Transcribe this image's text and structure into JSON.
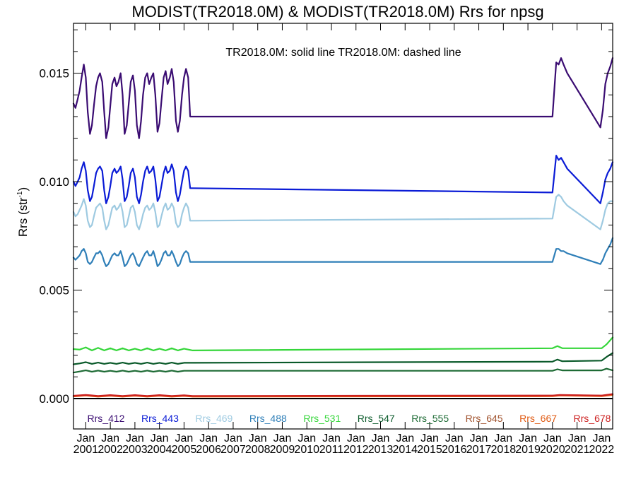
{
  "chart_data": {
    "type": "line",
    "title": "MODIST(TR2018.0M) & MODIST(TR2018.0M)  Rrs for npsg",
    "subtitle": "TR2018.0M: solid line   TR2018.0M: dashed line",
    "ylabel": "Rrs (str",
    "ylabel_sup": "-1",
    "ylabel_close": ")",
    "ylim": [
      -0.0014,
      0.0173
    ],
    "xlim": [
      2000.5,
      2022.45
    ],
    "yticks": [
      {
        "value": 0.0,
        "label": "0.000"
      },
      {
        "value": 0.005,
        "label": "0.005"
      },
      {
        "value": 0.01,
        "label": "0.010"
      },
      {
        "value": 0.015,
        "label": "0.015"
      }
    ],
    "xticks": [
      {
        "value": 2001,
        "label1": "Jan",
        "label2": "2001"
      },
      {
        "value": 2002,
        "label1": "Jan",
        "label2": "2002"
      },
      {
        "value": 2003,
        "label1": "Jan",
        "label2": "2003"
      },
      {
        "value": 2004,
        "label1": "Jan",
        "label2": "2004"
      },
      {
        "value": 2005,
        "label1": "Jan",
        "label2": "2005"
      },
      {
        "value": 2006,
        "label1": "Jan",
        "label2": "2006"
      },
      {
        "value": 2007,
        "label1": "Jan",
        "label2": "2007"
      },
      {
        "value": 2008,
        "label1": "Jan",
        "label2": "2008"
      },
      {
        "value": 2009,
        "label1": "Jan",
        "label2": "2009"
      },
      {
        "value": 2010,
        "label1": "Jan",
        "label2": "2010"
      },
      {
        "value": 2011,
        "label1": "Jan",
        "label2": "2011"
      },
      {
        "value": 2012,
        "label1": "Jan",
        "label2": "2012"
      },
      {
        "value": 2013,
        "label1": "Jan",
        "label2": "2013"
      },
      {
        "value": 2014,
        "label1": "Jan",
        "label2": "2014"
      },
      {
        "value": 2015,
        "label1": "Jan",
        "label2": "2015"
      },
      {
        "value": 2016,
        "label1": "Jan",
        "label2": "2016"
      },
      {
        "value": 2017,
        "label1": "Jan",
        "label2": "2017"
      },
      {
        "value": 2018,
        "label1": "Jan",
        "label2": "2018"
      },
      {
        "value": 2019,
        "label1": "Jan",
        "label2": "2019"
      },
      {
        "value": 2020,
        "label1": "Jan",
        "label2": "2020"
      },
      {
        "value": 2021,
        "label1": "Jan",
        "label2": "2021"
      },
      {
        "value": 2022,
        "label1": "Jan",
        "label2": "2022"
      }
    ],
    "grid": false,
    "legend_position": "bottom",
    "series": [
      {
        "name": "Rrs_412",
        "color": "#3a0c72",
        "x": [
          2000.5,
          2000.58,
          2000.67,
          2000.75,
          2000.83,
          2000.92,
          2001.0,
          2001.08,
          2001.17,
          2001.25,
          2001.33,
          2001.42,
          2001.5,
          2001.58,
          2001.67,
          2001.75,
          2001.83,
          2001.92,
          2002.0,
          2002.08,
          2002.17,
          2002.25,
          2002.33,
          2002.42,
          2002.5,
          2002.58,
          2002.67,
          2002.75,
          2002.83,
          2002.92,
          2003.0,
          2003.08,
          2003.17,
          2003.25,
          2003.33,
          2003.42,
          2003.5,
          2003.58,
          2003.67,
          2003.75,
          2003.83,
          2003.92,
          2004.0,
          2004.08,
          2004.17,
          2004.25,
          2004.33,
          2004.42,
          2004.5,
          2004.58,
          2004.67,
          2004.75,
          2004.83,
          2004.92,
          2005.0,
          2005.08,
          2005.17,
          2005.25,
          2005.35,
          2020.0,
          2020.15,
          2020.25,
          2020.35,
          2020.45,
          2020.6,
          2021.95,
          2022.05,
          2022.15,
          2022.25,
          2022.35,
          2022.45
        ],
        "y": [
          0.0136,
          0.0134,
          0.0138,
          0.0142,
          0.0148,
          0.0154,
          0.0148,
          0.0132,
          0.0122,
          0.0126,
          0.0135,
          0.0144,
          0.0148,
          0.015,
          0.0146,
          0.0132,
          0.012,
          0.0125,
          0.0135,
          0.0145,
          0.0148,
          0.0144,
          0.0146,
          0.015,
          0.014,
          0.0122,
          0.0126,
          0.0136,
          0.0146,
          0.0149,
          0.0142,
          0.0126,
          0.012,
          0.0128,
          0.014,
          0.0148,
          0.015,
          0.0145,
          0.0148,
          0.015,
          0.014,
          0.0123,
          0.0127,
          0.0137,
          0.0148,
          0.0151,
          0.0145,
          0.0148,
          0.0152,
          0.0146,
          0.0128,
          0.0123,
          0.0128,
          0.014,
          0.0148,
          0.0152,
          0.0148,
          0.013,
          0.013,
          0.013,
          0.0155,
          0.0154,
          0.0157,
          0.0154,
          0.015,
          0.0125,
          0.0133,
          0.0145,
          0.015,
          0.0153,
          0.0157
        ]
      },
      {
        "name": "Rrs_443",
        "color": "#0a1bd6",
        "x": [
          2000.5,
          2000.58,
          2000.67,
          2000.75,
          2000.83,
          2000.92,
          2001.0,
          2001.08,
          2001.17,
          2001.25,
          2001.33,
          2001.42,
          2001.5,
          2001.58,
          2001.67,
          2001.75,
          2001.83,
          2001.92,
          2002.0,
          2002.08,
          2002.17,
          2002.25,
          2002.33,
          2002.42,
          2002.5,
          2002.58,
          2002.67,
          2002.75,
          2002.83,
          2002.92,
          2003.0,
          2003.08,
          2003.17,
          2003.25,
          2003.33,
          2003.42,
          2003.5,
          2003.58,
          2003.67,
          2003.75,
          2003.83,
          2003.92,
          2004.0,
          2004.08,
          2004.17,
          2004.25,
          2004.33,
          2004.42,
          2004.5,
          2004.58,
          2004.67,
          2004.75,
          2004.83,
          2004.92,
          2005.0,
          2005.08,
          2005.17,
          2005.25,
          2005.35,
          2020.0,
          2020.15,
          2020.25,
          2020.35,
          2020.45,
          2020.6,
          2021.95,
          2022.05,
          2022.15,
          2022.25,
          2022.35,
          2022.45
        ],
        "y": [
          0.01,
          0.0098,
          0.01,
          0.0102,
          0.0106,
          0.0109,
          0.0105,
          0.0096,
          0.0091,
          0.0093,
          0.0098,
          0.0104,
          0.0106,
          0.0107,
          0.0105,
          0.0096,
          0.009,
          0.0093,
          0.0098,
          0.0104,
          0.0106,
          0.0104,
          0.0105,
          0.0107,
          0.0101,
          0.0091,
          0.0093,
          0.0098,
          0.0104,
          0.0106,
          0.0102,
          0.0093,
          0.009,
          0.0094,
          0.01,
          0.0105,
          0.0107,
          0.0104,
          0.0105,
          0.0107,
          0.0101,
          0.0091,
          0.0093,
          0.0098,
          0.0104,
          0.0107,
          0.0104,
          0.0105,
          0.0108,
          0.0105,
          0.0095,
          0.0091,
          0.0094,
          0.01,
          0.0105,
          0.0107,
          0.0105,
          0.0097,
          0.0097,
          0.0095,
          0.0112,
          0.011,
          0.0111,
          0.0109,
          0.0106,
          0.009,
          0.0095,
          0.0101,
          0.0104,
          0.0106,
          0.0109
        ]
      },
      {
        "name": "Rrs_469",
        "color": "#9ecae1",
        "x": [
          2000.5,
          2000.58,
          2000.67,
          2000.75,
          2000.83,
          2000.92,
          2001.0,
          2001.08,
          2001.17,
          2001.25,
          2001.33,
          2001.42,
          2001.5,
          2001.58,
          2001.67,
          2001.75,
          2001.83,
          2001.92,
          2002.0,
          2002.08,
          2002.17,
          2002.25,
          2002.33,
          2002.42,
          2002.5,
          2002.58,
          2002.67,
          2002.75,
          2002.83,
          2002.92,
          2003.0,
          2003.08,
          2003.17,
          2003.25,
          2003.33,
          2003.42,
          2003.5,
          2003.58,
          2003.67,
          2003.75,
          2003.83,
          2003.92,
          2004.0,
          2004.08,
          2004.17,
          2004.25,
          2004.33,
          2004.42,
          2004.5,
          2004.58,
          2004.67,
          2004.75,
          2004.83,
          2004.92,
          2005.0,
          2005.08,
          2005.17,
          2005.25,
          2005.35,
          2020.0,
          2020.15,
          2020.25,
          2020.35,
          2020.45,
          2020.6,
          2021.95,
          2022.05,
          2022.15,
          2022.25,
          2022.35,
          2022.45
        ],
        "y": [
          0.0086,
          0.0084,
          0.0085,
          0.0087,
          0.0089,
          0.0092,
          0.0089,
          0.0082,
          0.0079,
          0.008,
          0.0084,
          0.0088,
          0.0089,
          0.009,
          0.0088,
          0.0082,
          0.0078,
          0.008,
          0.0084,
          0.0088,
          0.0089,
          0.0087,
          0.0088,
          0.009,
          0.0086,
          0.0079,
          0.008,
          0.0084,
          0.0088,
          0.0089,
          0.0086,
          0.008,
          0.0078,
          0.0081,
          0.0085,
          0.0088,
          0.0089,
          0.0087,
          0.0088,
          0.009,
          0.0086,
          0.0079,
          0.008,
          0.0084,
          0.0088,
          0.009,
          0.0087,
          0.0088,
          0.009,
          0.0088,
          0.0081,
          0.0079,
          0.008,
          0.0085,
          0.0088,
          0.009,
          0.0088,
          0.0082,
          0.0082,
          0.0083,
          0.0093,
          0.0094,
          0.0093,
          0.0091,
          0.0089,
          0.0078,
          0.0082,
          0.0087,
          0.009,
          0.0091,
          0.0091
        ]
      },
      {
        "name": "Rrs_488",
        "color": "#2f7fb8",
        "x": [
          2000.5,
          2000.58,
          2000.67,
          2000.75,
          2000.83,
          2000.92,
          2001.0,
          2001.08,
          2001.17,
          2001.25,
          2001.33,
          2001.42,
          2001.5,
          2001.58,
          2001.67,
          2001.75,
          2001.83,
          2001.92,
          2002.0,
          2002.08,
          2002.17,
          2002.25,
          2002.33,
          2002.42,
          2002.5,
          2002.58,
          2002.67,
          2002.75,
          2002.83,
          2002.92,
          2003.0,
          2003.08,
          2003.17,
          2003.25,
          2003.33,
          2003.42,
          2003.5,
          2003.58,
          2003.67,
          2003.75,
          2003.83,
          2003.92,
          2004.0,
          2004.08,
          2004.17,
          2004.25,
          2004.33,
          2004.42,
          2004.5,
          2004.58,
          2004.67,
          2004.75,
          2004.83,
          2004.92,
          2005.0,
          2005.08,
          2005.17,
          2005.25,
          2005.35,
          2020.0,
          2020.15,
          2020.25,
          2020.35,
          2020.45,
          2020.6,
          2021.95,
          2022.05,
          2022.15,
          2022.25,
          2022.35,
          2022.45
        ],
        "y": [
          0.0065,
          0.0064,
          0.0065,
          0.0066,
          0.0068,
          0.0069,
          0.0067,
          0.0063,
          0.0062,
          0.0063,
          0.0065,
          0.0067,
          0.0067,
          0.0068,
          0.0066,
          0.0063,
          0.0061,
          0.0062,
          0.0064,
          0.0066,
          0.0067,
          0.0066,
          0.0066,
          0.0068,
          0.0065,
          0.0061,
          0.0062,
          0.0064,
          0.0066,
          0.0067,
          0.0065,
          0.0062,
          0.0061,
          0.0063,
          0.0065,
          0.0067,
          0.0068,
          0.0066,
          0.0066,
          0.0068,
          0.0065,
          0.0061,
          0.0062,
          0.0064,
          0.0067,
          0.0068,
          0.0066,
          0.0066,
          0.0068,
          0.0066,
          0.0063,
          0.0061,
          0.0062,
          0.0065,
          0.0067,
          0.0068,
          0.0067,
          0.0063,
          0.0063,
          0.0063,
          0.0069,
          0.0069,
          0.0068,
          0.0068,
          0.0067,
          0.0062,
          0.0064,
          0.0067,
          0.0069,
          0.0071,
          0.0074
        ]
      },
      {
        "name": "Rrs_531",
        "color": "#35d63a",
        "x": [
          2000.5,
          2000.75,
          2001.0,
          2001.25,
          2001.5,
          2001.75,
          2002.0,
          2002.25,
          2002.5,
          2002.75,
          2003.0,
          2003.25,
          2003.5,
          2003.75,
          2004.0,
          2004.25,
          2004.5,
          2004.75,
          2005.0,
          2005.35,
          2020.0,
          2020.2,
          2020.4,
          2022.0,
          2022.2,
          2022.45
        ],
        "y": [
          0.00228,
          0.00226,
          0.00236,
          0.00222,
          0.00234,
          0.00222,
          0.00232,
          0.00222,
          0.00232,
          0.00222,
          0.0023,
          0.00222,
          0.00232,
          0.00222,
          0.0023,
          0.00222,
          0.00232,
          0.00222,
          0.0023,
          0.00222,
          0.00232,
          0.00242,
          0.00232,
          0.00232,
          0.0025,
          0.00282
        ]
      },
      {
        "name": "Rrs_547",
        "color": "#0a5a2a",
        "x": [
          2000.5,
          2000.75,
          2001.0,
          2001.25,
          2001.5,
          2001.75,
          2002.0,
          2002.25,
          2002.5,
          2002.75,
          2003.0,
          2003.25,
          2003.5,
          2003.75,
          2004.0,
          2004.25,
          2004.5,
          2004.75,
          2005.0,
          2005.35,
          2020.0,
          2020.2,
          2020.4,
          2022.0,
          2022.2,
          2022.45
        ],
        "y": [
          0.00158,
          0.00162,
          0.00168,
          0.0016,
          0.00166,
          0.0016,
          0.00165,
          0.0016,
          0.00166,
          0.0016,
          0.00165,
          0.0016,
          0.00166,
          0.0016,
          0.00165,
          0.0016,
          0.00166,
          0.0016,
          0.00165,
          0.00165,
          0.0017,
          0.0018,
          0.00172,
          0.00175,
          0.00192,
          0.0021
        ]
      },
      {
        "name": "Rrs_555",
        "color": "#1e6b35",
        "x": [
          2000.5,
          2000.75,
          2001.0,
          2001.25,
          2001.5,
          2001.75,
          2002.0,
          2002.25,
          2002.5,
          2002.75,
          2003.0,
          2003.25,
          2003.5,
          2003.75,
          2004.0,
          2004.25,
          2004.5,
          2004.75,
          2005.0,
          2005.35,
          2020.0,
          2020.2,
          2020.4,
          2022.0,
          2022.2,
          2022.45
        ],
        "y": [
          0.0012,
          0.00125,
          0.0013,
          0.00124,
          0.00129,
          0.00124,
          0.00128,
          0.00124,
          0.00129,
          0.00124,
          0.00128,
          0.00124,
          0.00129,
          0.00124,
          0.00128,
          0.00124,
          0.00129,
          0.00124,
          0.00128,
          0.00128,
          0.00128,
          0.00135,
          0.0013,
          0.0013,
          0.00138,
          0.0013
        ]
      },
      {
        "name": "Rrs_645",
        "color": "#a0522d",
        "x": [
          2000.5,
          2001.0,
          2001.5,
          2002.0,
          2002.5,
          2003.0,
          2003.5,
          2004.0,
          2004.5,
          2005.0,
          2005.35,
          2020.0,
          2020.3,
          2022.0,
          2022.45
        ],
        "y": [
          0.00012,
          0.00016,
          0.00011,
          0.00015,
          0.00011,
          0.00015,
          0.00011,
          0.00015,
          0.00011,
          0.00014,
          0.00011,
          0.00013,
          0.00016,
          0.00013,
          0.0002
        ]
      },
      {
        "name": "Rrs_667",
        "color": "#e05a12",
        "x": [
          2000.5,
          2001.0,
          2001.5,
          2002.0,
          2002.5,
          2003.0,
          2003.5,
          2004.0,
          2004.5,
          2005.0,
          2005.35,
          2020.0,
          2020.3,
          2022.0,
          2022.45
        ],
        "y": [
          0.0001,
          0.00014,
          9e-05,
          0.00013,
          9e-05,
          0.00013,
          9e-05,
          0.00013,
          9e-05,
          0.00012,
          9e-05,
          0.00011,
          0.00014,
          0.00011,
          0.00017
        ]
      },
      {
        "name": "Rrs_678",
        "color": "#cc1f1f",
        "x": [
          2000.5,
          2001.0,
          2001.5,
          2002.0,
          2002.5,
          2003.0,
          2003.5,
          2004.0,
          2004.5,
          2005.0,
          2005.35,
          2020.0,
          2020.3,
          2022.0,
          2022.45
        ],
        "y": [
          0.00013,
          0.00017,
          0.00012,
          0.00016,
          0.00012,
          0.00016,
          0.00012,
          0.00016,
          0.00012,
          0.00015,
          0.00012,
          0.00014,
          0.00017,
          0.00014,
          0.00021
        ]
      }
    ]
  }
}
